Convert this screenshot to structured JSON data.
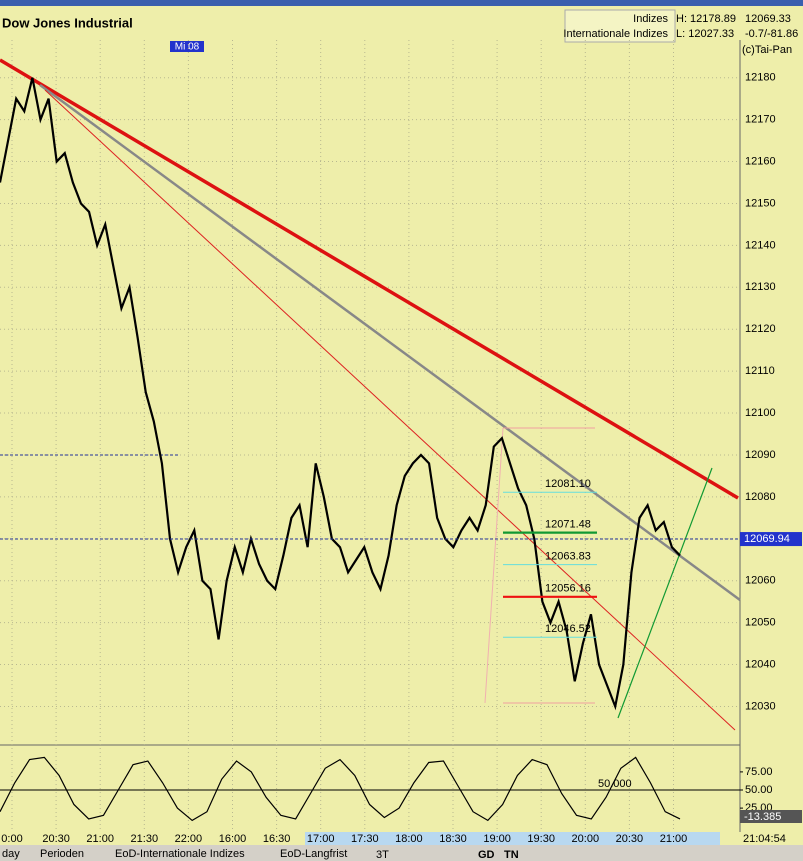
{
  "window": {
    "title": "Dow Jones Industrial",
    "group": "Indizes",
    "subgroup": "Internationale Indizes",
    "high": "H: 12178.89",
    "low": "L: 12027.33",
    "last": "12069.33",
    "change": "-0.7/-81.86",
    "copyright": "(c)Tai-Pan",
    "day_marker": "Mi 08",
    "clock": "21:04:54",
    "tabs": [
      "day",
      "Perioden",
      "EoD-Internationale Indizes",
      "EoD-Langfrist"
    ],
    "tools": [
      "3T",
      "GD",
      "TN"
    ]
  },
  "chart_data": [
    {
      "type": "line",
      "color": "#000000",
      "time_labels": [
        "0:00",
        "20:30",
        "21:00",
        "21:30",
        "22:00",
        "16:00",
        "16:30",
        "17:00",
        "17:30",
        "18:00",
        "18:30",
        "19:00",
        "19:30",
        "20:00",
        "20:30",
        "21:00"
      ],
      "values": [
        12155,
        12165,
        12175,
        12172,
        12180,
        12170,
        12175,
        12160,
        12162,
        12155,
        12150,
        12148,
        12140,
        12145,
        12135,
        12125,
        12130,
        12118,
        12105,
        12098,
        12088,
        12070,
        12062,
        12068,
        12072,
        12060,
        12058,
        12046,
        12060,
        12068,
        12062,
        12070,
        12064,
        12060,
        12058,
        12066,
        12075,
        12078,
        12068,
        12088,
        12080,
        12070,
        12068,
        12062,
        12065,
        12068,
        12062,
        12058,
        12066,
        12078,
        12085,
        12088,
        12090,
        12088,
        12075,
        12070,
        12068,
        12072,
        12075,
        12072,
        12078,
        12092,
        12094,
        12088,
        12082,
        12078,
        12070,
        12055,
        12050,
        12055,
        12048,
        12036,
        12045,
        12052,
        12040,
        12035,
        12030,
        12040,
        12062,
        12075,
        12078,
        12072,
        12074,
        12068,
        12066
      ],
      "ylim": [
        12022,
        12189
      ],
      "yticks": [
        12030,
        12040,
        12050,
        12060,
        12070,
        12080,
        12090,
        12100,
        12110,
        12120,
        12130,
        12140,
        12150,
        12160,
        12170,
        12180
      ],
      "last_price": {
        "value": 12069.94,
        "label": "12069.94"
      },
      "annotations": [
        {
          "value": 12081.1,
          "label": "12081.10",
          "color": "#66dddd"
        },
        {
          "value": 12071.48,
          "label": "12071.48",
          "color": "#119933"
        },
        {
          "value": 12063.83,
          "label": "12063.83",
          "color": "#66dddd"
        },
        {
          "value": 12056.16,
          "label": "12056.16",
          "color": "#ee1111"
        },
        {
          "value": 12046.52,
          "label": "12046.52",
          "color": "#66dddd"
        }
      ],
      "grid": true
    },
    {
      "type": "line",
      "color": "#000000",
      "values": [
        20,
        60,
        92,
        95,
        70,
        30,
        10,
        15,
        50,
        85,
        90,
        60,
        25,
        8,
        20,
        65,
        90,
        75,
        40,
        15,
        10,
        45,
        80,
        92,
        70,
        30,
        12,
        25,
        60,
        88,
        90,
        55,
        20,
        8,
        30,
        70,
        92,
        85,
        45,
        15,
        10,
        40,
        80,
        95,
        60,
        20,
        10
      ],
      "ylim": [
        -8,
        108
      ],
      "yticks": [
        {
          "value": 75,
          "label": "75.00"
        },
        {
          "value": 50,
          "label": "50.00"
        },
        {
          "value": 25,
          "label": "25.00"
        }
      ],
      "current": {
        "value": -13.385,
        "label": "-13.385"
      },
      "level": {
        "value": 50,
        "label": "50.000"
      }
    }
  ]
}
